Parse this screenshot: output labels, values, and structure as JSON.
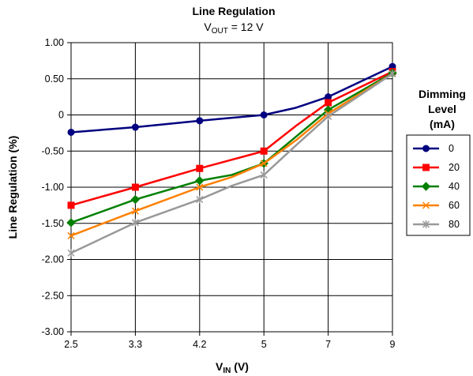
{
  "chart_data": {
    "type": "line",
    "title": "Line Regulation",
    "subtitle": {
      "prefix": "V",
      "sub": "OUT",
      "suffix": " = 12 V"
    },
    "xlabel": {
      "prefix": "V",
      "sub": "IN",
      "suffix": " (V)"
    },
    "ylabel": "Line Regulation (%)",
    "x_categories": [
      "2.5",
      "3.3",
      "4.2",
      "5",
      "7",
      "9"
    ],
    "y_ticks": [
      "1.00",
      "0.50",
      "0",
      "-0.50",
      "-1.00",
      "-1.50",
      "-2.00",
      "-2.50",
      "-3.00"
    ],
    "ylim": [
      -3.0,
      1.0
    ],
    "grid": true,
    "legend": {
      "title_lines": [
        "Dimming",
        "Level",
        "(mA)"
      ],
      "placement": "right"
    },
    "series": [
      {
        "name": "0",
        "color": "#000080",
        "marker": "circle",
        "x": [
          0,
          1,
          2,
          2.5,
          3,
          3.5,
          4,
          5
        ],
        "y": [
          -0.24,
          -0.17,
          -0.08,
          -0.04,
          0.0,
          0.1,
          0.25,
          0.67
        ]
      },
      {
        "name": "20",
        "color": "#FF0000",
        "marker": "square",
        "x": [
          0,
          1,
          2,
          3,
          3.5,
          4,
          5
        ],
        "y": [
          -1.25,
          -1.0,
          -0.74,
          -0.5,
          -0.15,
          0.17,
          0.6
        ]
      },
      {
        "name": "40",
        "color": "#008000",
        "marker": "diamond",
        "x": [
          0,
          1,
          2,
          2.5,
          3,
          3.5,
          4,
          5
        ],
        "y": [
          -1.49,
          -1.17,
          -0.91,
          -0.83,
          -0.67,
          -0.3,
          0.07,
          0.58
        ]
      },
      {
        "name": "60",
        "color": "#FF8000",
        "marker": "x",
        "x": [
          0,
          1,
          2,
          2.5,
          3,
          3.5,
          4,
          5
        ],
        "y": [
          -1.67,
          -1.33,
          -1.0,
          -0.86,
          -0.67,
          -0.35,
          0.02,
          0.57
        ]
      },
      {
        "name": "80",
        "color": "#999999",
        "marker": "star",
        "x": [
          0,
          1,
          2,
          2.5,
          3,
          3.5,
          4,
          5
        ],
        "y": [
          -1.91,
          -1.49,
          -1.17,
          -0.98,
          -0.83,
          -0.42,
          -0.02,
          0.57
        ]
      }
    ]
  }
}
